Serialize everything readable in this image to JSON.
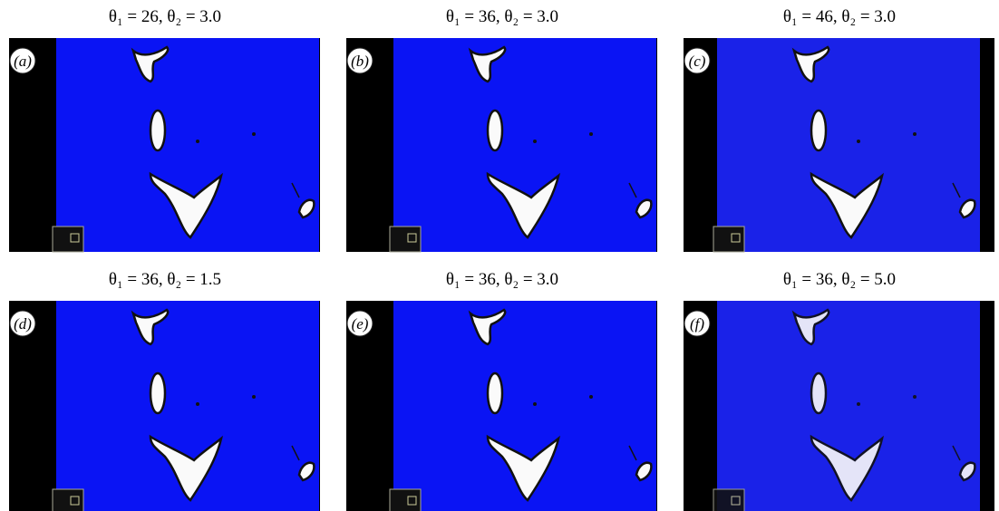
{
  "panels": [
    {
      "title": "θ₁ = 26, θ₂ = 3.0",
      "label": "(a)"
    },
    {
      "title": "θ₁ = 36, θ₂ = 3.0",
      "label": "(b)"
    },
    {
      "title": "θ₁ = 46, θ₂ = 3.0",
      "label": "(c)"
    },
    {
      "title": "θ₁ = 36, θ₂ = 1.5",
      "label": "(d)"
    },
    {
      "title": "θ₁ = 36, θ₂ = 3.0",
      "label": "(e)"
    },
    {
      "title": "θ₁ = 36, θ₂ = 5.0",
      "label": "(f)"
    }
  ]
}
